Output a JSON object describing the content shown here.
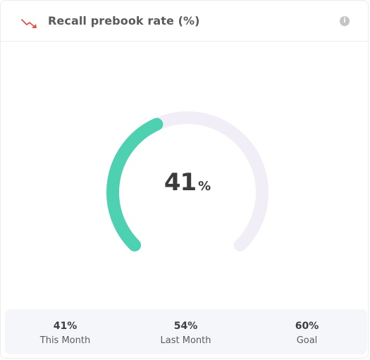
{
  "card": {
    "title": "Recall prebook rate (%)",
    "trend_icon": "trend-down-icon",
    "info_icon": "info-icon",
    "info_glyph": "i"
  },
  "gauge": {
    "value": 41,
    "display_value": "41",
    "unit": "%",
    "fill_color": "#4dd1b0",
    "track_color": "#f1eef8"
  },
  "stats": [
    {
      "value": "41%",
      "label": "This Month"
    },
    {
      "value": "54%",
      "label": "Last Month"
    },
    {
      "value": "60%",
      "label": "Goal"
    }
  ]
}
